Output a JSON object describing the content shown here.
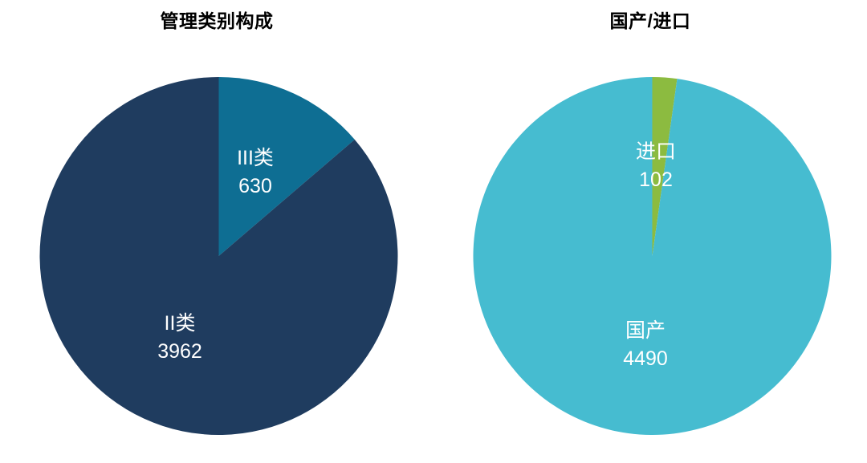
{
  "chart_data": [
    {
      "type": "pie",
      "title": "管理类别构成",
      "categories": [
        "III类",
        "II类"
      ],
      "values": [
        630,
        3962
      ],
      "colors": [
        "#0E6E93",
        "#1F3C5F"
      ],
      "start_angle_deg": 0,
      "direction": "clockwise",
      "labels_inside": true,
      "legend": "none",
      "label_text_color": "#FFFFFF"
    },
    {
      "type": "pie",
      "title": "国产/进口",
      "categories": [
        "进口",
        "国产"
      ],
      "values": [
        102,
        4490
      ],
      "colors": [
        "#8CBB40",
        "#46BCD0"
      ],
      "start_angle_deg": 0,
      "direction": "clockwise",
      "labels_inside": true,
      "legend": "none",
      "label_text_color": "#FFFFFF"
    }
  ],
  "background_color": "#FFFFFF",
  "title_text_color": "#000000"
}
